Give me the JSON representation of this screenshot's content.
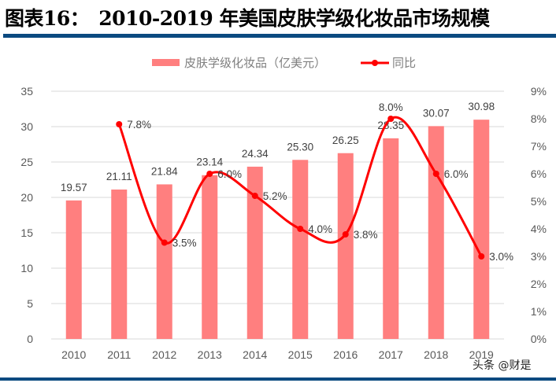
{
  "title": "图表16：　2010-2019 年美国皮肤学级化妆品市场规模",
  "watermark": "头条 @财是",
  "chart_data": {
    "type": "bar+line",
    "categories": [
      "2010",
      "2011",
      "2012",
      "2013",
      "2014",
      "2015",
      "2016",
      "2017",
      "2018",
      "2019"
    ],
    "series": [
      {
        "name": "皮肤学级化妆品（亿美元）",
        "type": "bar",
        "axis": "left",
        "color": "#ff7f7f",
        "values": [
          19.57,
          21.11,
          21.84,
          23.14,
          24.34,
          25.3,
          26.25,
          28.35,
          30.07,
          30.98
        ],
        "labels": [
          "19.57",
          "21.11",
          "21.84",
          "23.14",
          "24.34",
          "25.30",
          "26.25",
          "28.35",
          "30.07",
          "30.98"
        ]
      },
      {
        "name": "同比",
        "type": "line",
        "axis": "right",
        "color": "#ff0000",
        "values": [
          null,
          7.8,
          3.5,
          6.0,
          5.2,
          4.0,
          3.8,
          8.0,
          6.0,
          3.0
        ],
        "labels": [
          "",
          "7.8%",
          "3.5%",
          "6.0%",
          "5.2%",
          "4.0%",
          "3.8%",
          "8.0%",
          "6.0%",
          "3.0%"
        ]
      }
    ],
    "y_left": {
      "range": [
        0,
        35
      ],
      "ticks": [
        "0",
        "5",
        "10",
        "15",
        "20",
        "25",
        "30",
        "35"
      ]
    },
    "y_right": {
      "range": [
        0,
        9
      ],
      "ticks": [
        "0%",
        "1%",
        "2%",
        "3%",
        "4%",
        "5%",
        "6%",
        "7%",
        "8%",
        "9%"
      ]
    },
    "grid": true,
    "legend": "top"
  }
}
